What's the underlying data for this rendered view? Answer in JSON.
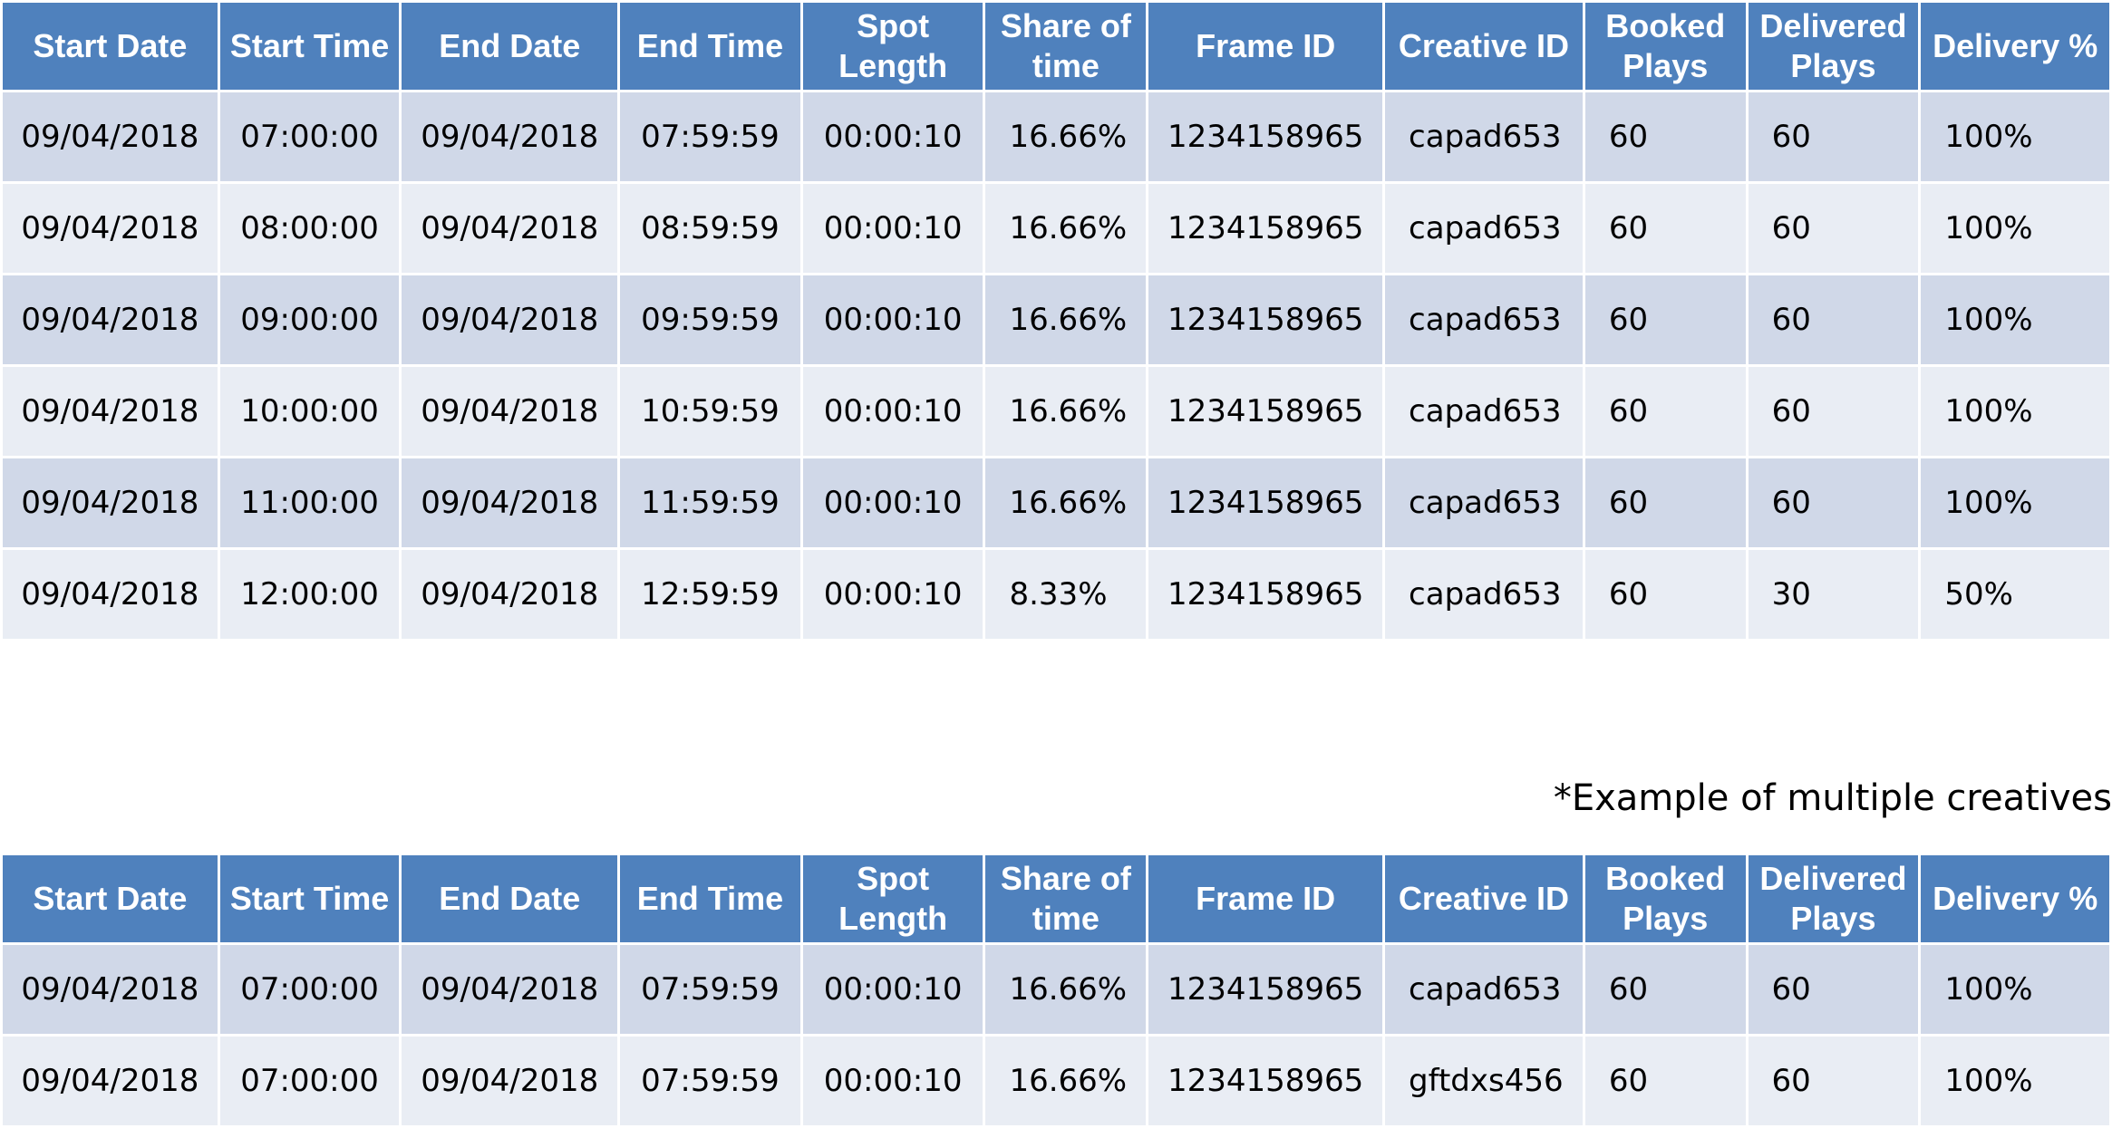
{
  "headers": [
    "Start Date",
    "Start Time",
    "End Date",
    "End Time",
    "Spot Length",
    "Share of time",
    "Frame ID",
    "Creative ID",
    "Booked Plays",
    "Delivered Plays",
    "Delivery %"
  ],
  "table_main": {
    "rows": [
      [
        "09/04/2018",
        "07:00:00",
        "09/04/2018",
        "07:59:59",
        "00:00:10",
        "16.66%",
        "1234158965",
        "capad653",
        "60",
        "60",
        "100%"
      ],
      [
        "09/04/2018",
        "08:00:00",
        "09/04/2018",
        "08:59:59",
        "00:00:10",
        "16.66%",
        "1234158965",
        "capad653",
        "60",
        "60",
        "100%"
      ],
      [
        "09/04/2018",
        "09:00:00",
        "09/04/2018",
        "09:59:59",
        "00:00:10",
        "16.66%",
        "1234158965",
        "capad653",
        "60",
        "60",
        "100%"
      ],
      [
        "09/04/2018",
        "10:00:00",
        "09/04/2018",
        "10:59:59",
        "00:00:10",
        "16.66%",
        "1234158965",
        "capad653",
        "60",
        "60",
        "100%"
      ],
      [
        "09/04/2018",
        "11:00:00",
        "09/04/2018",
        "11:59:59",
        "00:00:10",
        "16.66%",
        "1234158965",
        "capad653",
        "60",
        "60",
        "100%"
      ],
      [
        "09/04/2018",
        "12:00:00",
        "09/04/2018",
        "12:59:59",
        "00:00:10",
        "8.33%",
        "1234158965",
        "capad653",
        "60",
        "30",
        "50%"
      ]
    ]
  },
  "note": "*Example of multiple creatives",
  "table_multi": {
    "rows": [
      [
        "09/04/2018",
        "07:00:00",
        "09/04/2018",
        "07:59:59",
        "00:00:10",
        "16.66%",
        "1234158965",
        "capad653",
        "60",
        "60",
        "100%"
      ],
      [
        "09/04/2018",
        "07:00:00",
        "09/04/2018",
        "07:59:59",
        "00:00:10",
        "16.66%",
        "1234158965",
        "gftdxs456",
        "60",
        "60",
        "100%"
      ]
    ]
  },
  "colors": {
    "header_bg": "#4f81bd",
    "row_dark": "#d0d8e8",
    "row_light": "#e9edf4"
  }
}
